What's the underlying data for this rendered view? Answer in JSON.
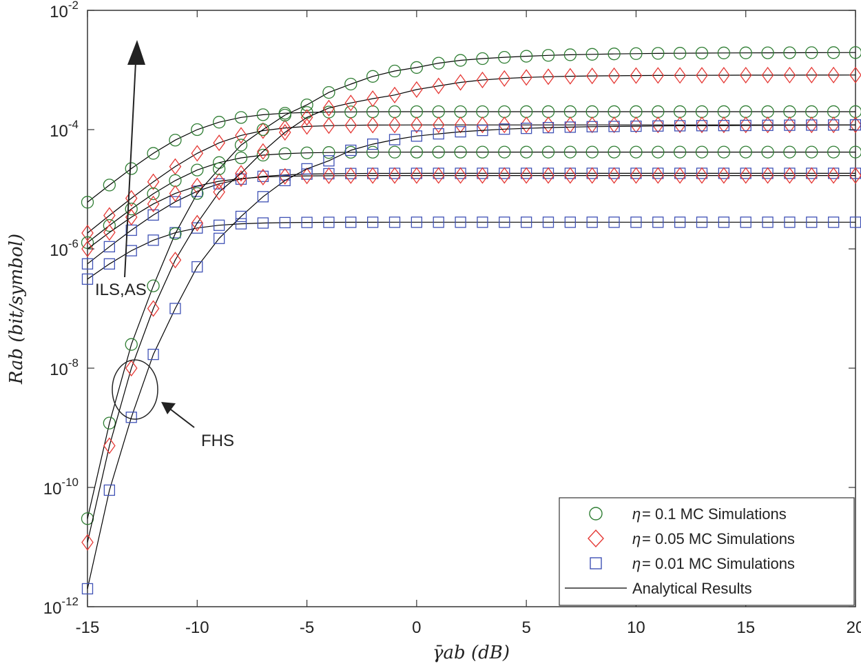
{
  "chart_data": {
    "type": "line",
    "title": "",
    "xlabel": "γ̄ab (dB)",
    "ylabel": "Rab (bit/symbol)",
    "xlim": [
      -15,
      20
    ],
    "ylim": [
      1e-12,
      0.01
    ],
    "yscale": "log",
    "x_ticks": [
      "-15",
      "-10",
      "-5",
      "0",
      "5",
      "10",
      "15",
      "20"
    ],
    "y_ticks": [
      {
        "base": "10",
        "exp": "-12"
      },
      {
        "base": "10",
        "exp": "-10"
      },
      {
        "base": "10",
        "exp": "-8"
      },
      {
        "base": "10",
        "exp": "-6"
      },
      {
        "base": "10",
        "exp": "-4"
      },
      {
        "base": "10",
        "exp": "-2"
      }
    ],
    "x": [
      -15,
      -14,
      -13,
      -12,
      -11,
      -10,
      -9,
      -8,
      -7,
      -6,
      -5,
      -4,
      -3,
      -2,
      -1,
      0,
      1,
      2,
      3,
      4,
      5,
      6,
      7,
      8,
      9,
      10,
      11,
      12,
      13,
      14,
      15,
      16,
      17,
      18,
      19,
      20
    ],
    "series": [
      {
        "name": "ILS,AS η=0.1",
        "marker": "circle",
        "group": "ILS",
        "saturation": 0.0002,
        "half_x": -10
      },
      {
        "name": "ILS,AS η=0.05",
        "marker": "diamond",
        "group": "ILS",
        "saturation": 0.00012,
        "half_x": -9
      },
      {
        "name": "ILS,AS η=0.01",
        "marker": "square",
        "group": "ILS",
        "saturation": 1.85e-05,
        "half_x": -10
      },
      {
        "name": "ILS,AS η=0.1 (2)",
        "marker": "circle",
        "group": "ILS",
        "saturation": 4.2e-05,
        "half_x": -10
      },
      {
        "name": "ILS,AS η=0.05 (2)",
        "marker": "diamond",
        "group": "ILS",
        "saturation": 1.7e-05,
        "half_x": -11
      },
      {
        "name": "ILS,AS η=0.01 (2)",
        "marker": "square",
        "group": "ILS",
        "saturation": 2.8e-06,
        "half_x": -12
      },
      {
        "name": "FHS η=0.1",
        "marker": "circle",
        "group": "FHS",
        "values": [
          3e-11,
          1.2e-09,
          2.5e-08,
          2.4e-07,
          1.8e-06,
          8.5e-06,
          2.2e-05,
          5.5e-05,
          0.0001,
          0.000175,
          0.00026,
          0.00042,
          0.00058,
          0.00078,
          0.00096,
          0.0011,
          0.0013,
          0.00145,
          0.00155,
          0.00163,
          0.0017,
          0.00176,
          0.0018,
          0.00183,
          0.00186,
          0.00188,
          0.0019,
          0.00191,
          0.00192,
          0.00193,
          0.001935,
          0.00194,
          0.001945,
          0.00195,
          0.001955,
          0.00196
        ]
      },
      {
        "name": "FHS η=0.05",
        "marker": "diamond",
        "group": "FHS",
        "values": [
          1.2e-11,
          5e-10,
          1e-08,
          1e-07,
          6.5e-07,
          2.7e-06,
          9e-06,
          1.85e-05,
          4.3e-05,
          9e-05,
          0.00016,
          0.00023,
          0.00028,
          0.00033,
          0.00038,
          0.00047,
          0.00054,
          0.00062,
          0.00068,
          0.00072,
          0.00075,
          0.00077,
          0.000785,
          0.000795,
          0.0008,
          0.000805,
          0.00081,
          0.000812,
          0.000814,
          0.000816,
          0.000818,
          0.000819,
          0.00082,
          0.000821,
          0.000822,
          0.000823
        ]
      },
      {
        "name": "FHS η=0.01",
        "marker": "square",
        "group": "FHS",
        "values": [
          2e-12,
          9e-11,
          1.5e-09,
          1.7e-08,
          1e-07,
          5e-07,
          1.5e-06,
          3.5e-06,
          7.5e-06,
          1.4e-05,
          2.2e-05,
          3e-05,
          4.5e-05,
          5.7e-05,
          6.8e-05,
          7.8e-05,
          8.5e-05,
          9.2e-05,
          9.7e-05,
          0.000102,
          0.000105,
          0.000108,
          0.00011,
          0.000112,
          0.000113,
          0.000114,
          0.000115,
          0.000116,
          0.0001165,
          0.000117,
          0.0001175,
          0.000118,
          0.0001185,
          0.000119,
          0.0001195,
          0.00012
        ]
      }
    ],
    "legend": {
      "placement": "bottom-right",
      "entries": [
        {
          "symbol": "η",
          "text": " = 0.1 MC Simulations",
          "marker": "circle"
        },
        {
          "symbol": "η",
          "text": " = 0.05 MC Simulations",
          "marker": "diamond"
        },
        {
          "symbol": "η",
          "text": " = 0.01 MC Simulations",
          "marker": "square"
        },
        {
          "symbol": "",
          "text": "Analytical Results",
          "marker": "line"
        }
      ]
    },
    "annotations": {
      "ils": "ILS,AS",
      "fhs": "FHS"
    },
    "colors": {
      "circle": "#2e7d32",
      "diamond": "#e53935",
      "square": "#3f51b5",
      "line": "#000000",
      "axis": "#333333"
    }
  }
}
